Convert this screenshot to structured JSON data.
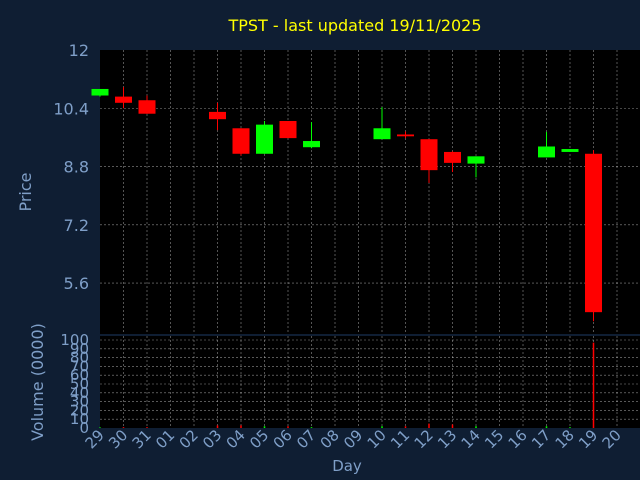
{
  "chart_data": [
    {
      "type": "candlestick",
      "title": "TPST - last updated 19/11/2025",
      "ylabel": "Price",
      "ylim": [
        4.2,
        12
      ],
      "yticks": [
        "12",
        "10.4",
        "8.8",
        "7.2",
        "5.6"
      ],
      "ytick_values": [
        12,
        10.4,
        8.8,
        7.2,
        5.6
      ],
      "grid": true,
      "x": [
        "29",
        "30",
        "31",
        "01",
        "02",
        "03",
        "04",
        "05",
        "06",
        "07",
        "08",
        "09",
        "10",
        "11",
        "12",
        "13",
        "14",
        "15",
        "16",
        "17",
        "18",
        "19",
        "20"
      ],
      "candles": [
        {
          "day": "29",
          "open": 10.75,
          "close": 10.93,
          "high": 10.93,
          "low": 10.72
        },
        {
          "day": "30",
          "open": 10.72,
          "close": 10.55,
          "high": 10.98,
          "low": 10.4
        },
        {
          "day": "31",
          "open": 10.62,
          "close": 10.25,
          "high": 10.75,
          "low": 10.25
        },
        {
          "day": "03",
          "open": 10.3,
          "close": 10.1,
          "high": 10.55,
          "low": 9.8
        },
        {
          "day": "04",
          "open": 9.85,
          "close": 9.15,
          "high": 9.85,
          "low": 9.1
        },
        {
          "day": "05",
          "open": 9.15,
          "close": 9.95,
          "high": 10.05,
          "low": 9.15
        },
        {
          "day": "06",
          "open": 10.05,
          "close": 9.58,
          "high": 10.05,
          "low": 9.58
        },
        {
          "day": "07",
          "open": 9.33,
          "close": 9.5,
          "high": 10.02,
          "low": 9.3
        },
        {
          "day": "10",
          "open": 9.55,
          "close": 9.85,
          "high": 10.43,
          "low": 9.55
        },
        {
          "day": "11",
          "open": 9.68,
          "close": 9.63,
          "high": 9.76,
          "low": 9.58
        },
        {
          "day": "12",
          "open": 9.55,
          "close": 8.7,
          "high": 9.55,
          "low": 8.35
        },
        {
          "day": "13",
          "open": 9.2,
          "close": 8.9,
          "high": 9.22,
          "low": 8.65
        },
        {
          "day": "14",
          "open": 8.88,
          "close": 9.08,
          "high": 9.08,
          "low": 8.5
        },
        {
          "day": "17",
          "open": 9.05,
          "close": 9.35,
          "high": 9.75,
          "low": 9.05
        },
        {
          "day": "18",
          "open": 9.2,
          "close": 9.28,
          "high": 9.28,
          "low": 9.2
        },
        {
          "day": "19",
          "open": 9.15,
          "close": 4.8,
          "high": 9.25,
          "low": 4.55
        }
      ]
    },
    {
      "type": "bar",
      "ylabel": "Volume (0000)",
      "xlabel": "Day",
      "ylim": [
        0,
        100
      ],
      "yticks": [
        "100",
        "90",
        "80",
        "70",
        "60",
        "50",
        "40",
        "30",
        "20",
        "10",
        "0"
      ],
      "ytick_values": [
        100,
        90,
        80,
        70,
        60,
        50,
        40,
        30,
        20,
        10,
        0
      ],
      "x": [
        "29",
        "30",
        "31",
        "01",
        "02",
        "03",
        "04",
        "05",
        "06",
        "07",
        "08",
        "09",
        "10",
        "11",
        "12",
        "13",
        "14",
        "15",
        "16",
        "17",
        "18",
        "19",
        "20"
      ],
      "bars": [
        {
          "day": "29",
          "value": 0.8,
          "color": "#00ff00"
        },
        {
          "day": "30",
          "value": 1,
          "color": "#ff0000"
        },
        {
          "day": "31",
          "value": 1,
          "color": "#ff0000"
        },
        {
          "day": "03",
          "value": 3,
          "color": "#ff0000"
        },
        {
          "day": "04",
          "value": 3,
          "color": "#ff0000"
        },
        {
          "day": "05",
          "value": 2,
          "color": "#00ff00"
        },
        {
          "day": "06",
          "value": 2,
          "color": "#ff0000"
        },
        {
          "day": "07",
          "value": 1,
          "color": "#00ff00"
        },
        {
          "day": "10",
          "value": 2,
          "color": "#00ff00"
        },
        {
          "day": "11",
          "value": 2,
          "color": "#ff0000"
        },
        {
          "day": "12",
          "value": 5,
          "color": "#ff0000"
        },
        {
          "day": "13",
          "value": 4,
          "color": "#ff0000"
        },
        {
          "day": "14",
          "value": 2,
          "color": "#00ff00"
        },
        {
          "day": "17",
          "value": 2,
          "color": "#00ff00"
        },
        {
          "day": "18",
          "value": 1,
          "color": "#00ff00"
        },
        {
          "day": "19",
          "value": 97,
          "color": "#ff0000"
        }
      ]
    }
  ],
  "colors": {
    "background": "#0f1e33",
    "plot_background": "#000000",
    "title": "#ffff00",
    "axis_text": "#7f9fc8",
    "up": "#00ff00",
    "down": "#ff0000",
    "grid": "#ffffff"
  }
}
